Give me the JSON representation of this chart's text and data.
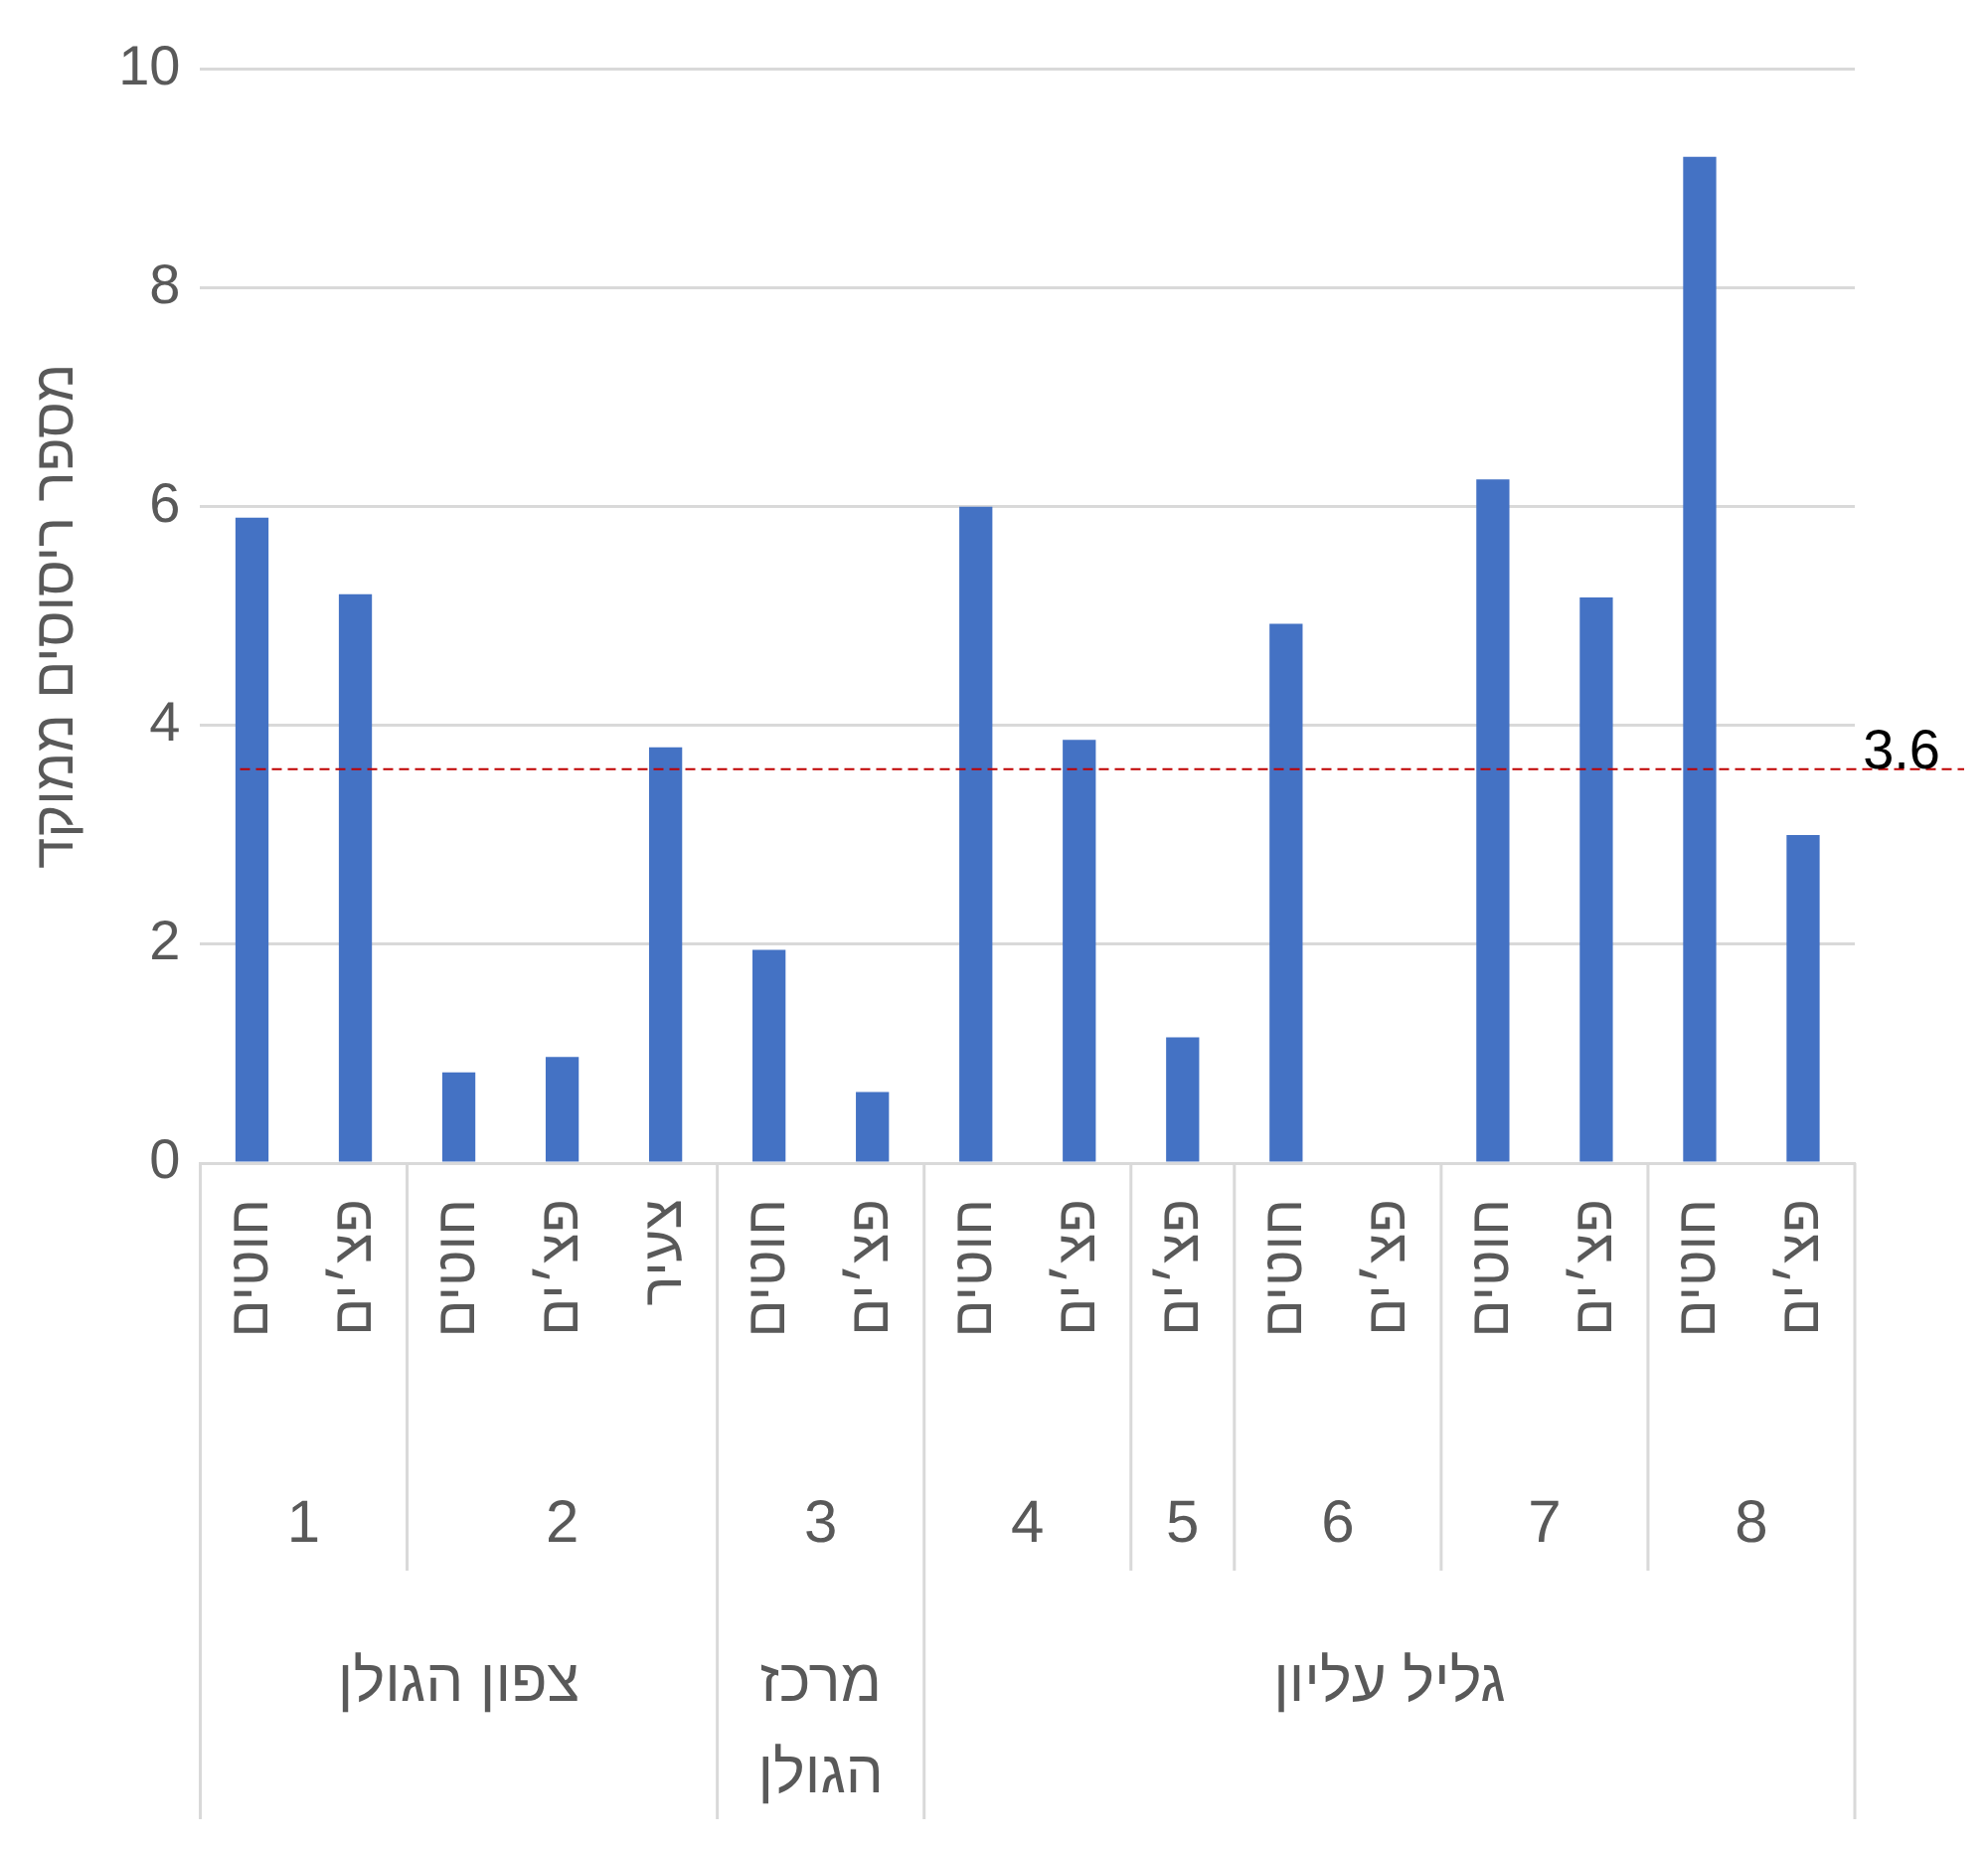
{
  "chart_data": {
    "type": "bar",
    "ylabel": "מספר ריסוסים ממוקד",
    "categories": [
      "חוטים",
      "פצ׳ים",
      "חוטים",
      "פצ׳ים",
      "צעיר",
      "חוטים",
      "פצ׳ים",
      "חוטים",
      "פצ׳ים",
      "פצ׳ים",
      "חוטים",
      "פצ׳ים",
      "חוטים",
      "פצ׳ים",
      "חוטים",
      "פצ׳ים"
    ],
    "values": [
      5.9,
      5.2,
      0.83,
      0.97,
      3.8,
      1.95,
      0.65,
      6.0,
      3.87,
      1.15,
      4.93,
      0,
      6.25,
      5.17,
      9.2,
      3.0
    ],
    "color": "#4472c4",
    "ylim": [
      0,
      10
    ],
    "yticks": [
      0,
      2,
      4,
      6,
      8,
      10
    ],
    "grid": "y",
    "legend": false,
    "ref_lines": [
      {
        "axis": "y",
        "value": 3.6,
        "label": "3.6",
        "color": "#c00000",
        "line_style": "dashed"
      }
    ],
    "annotations": [
      "1",
      "2",
      "3",
      "4",
      "5",
      "6",
      "7",
      "8",
      "צפון הגולן",
      "מרכז הגולן",
      "גליל עליון"
    ]
  }
}
